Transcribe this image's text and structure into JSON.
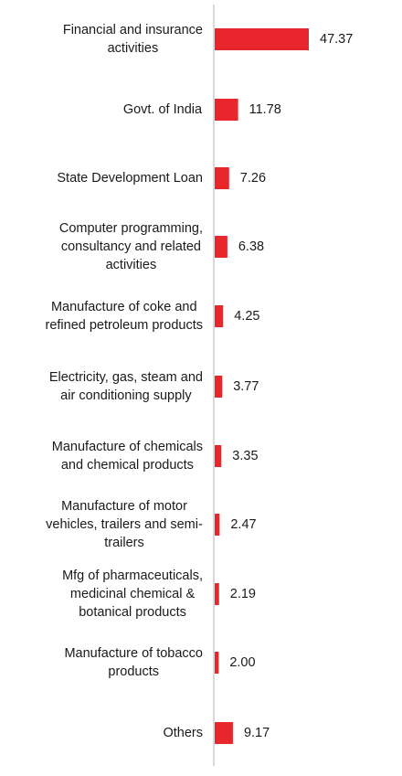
{
  "chart_data": {
    "type": "bar",
    "orientation": "horizontal",
    "title": "",
    "xlabel": "",
    "ylabel": "",
    "grid": false,
    "legend": "none",
    "bar_color": "#e8262c",
    "axis_color": "#b3b3b3",
    "xlim": [
      0,
      47.37
    ],
    "categories": [
      [
        "Financial and insurance",
        "activities"
      ],
      [
        "Govt. of India"
      ],
      [
        "State Development Loan"
      ],
      [
        "Computer programming,",
        "consultancy and related",
        "activities"
      ],
      [
        "Manufacture of coke and",
        "refined petroleum products"
      ],
      [
        "Electricity, gas, steam and",
        "air conditioning supply"
      ],
      [
        "Manufacture of chemicals",
        "and chemical products"
      ],
      [
        "Manufacture of motor",
        "vehicles, trailers and semi-",
        "trailers"
      ],
      [
        "Mfg of pharmaceuticals,",
        "medicinal chemical &",
        "botanical products"
      ],
      [
        "Manufacture of tobacco",
        "products"
      ],
      [
        "Others"
      ]
    ],
    "values": [
      47.37,
      11.78,
      7.26,
      6.38,
      4.25,
      3.77,
      3.35,
      2.47,
      2.19,
      2.0,
      9.17
    ],
    "value_labels": [
      "47.37",
      "11.78",
      "7.26",
      "6.38",
      "4.25",
      "3.77",
      "3.35",
      "2.47",
      "2.19",
      "2.00",
      "9.17"
    ]
  }
}
